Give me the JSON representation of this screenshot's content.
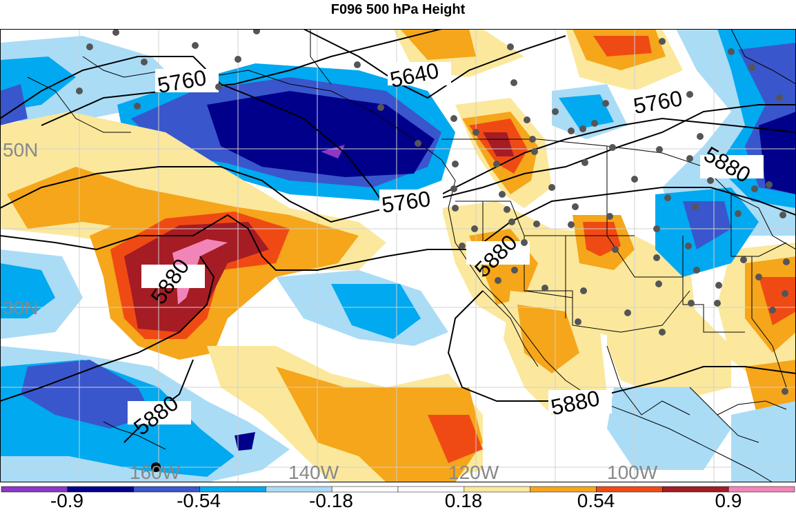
{
  "title": "F096 500 hPa Height",
  "latitude_labels": [
    "50N",
    "30N"
  ],
  "longitude_labels": [
    "160W",
    "140W",
    "120W",
    "100W"
  ],
  "contour_labels": [
    "5760",
    "5640",
    "5760",
    "5880",
    "5760",
    "5880",
    "5880",
    "5880",
    "5880"
  ],
  "colorbar": {
    "colors": [
      "#8c37c6",
      "#00008b",
      "#3a56cc",
      "#00a9f0",
      "#aadcf6",
      "#ffffff",
      "#ffffff",
      "#fbe89c",
      "#f5a61a",
      "#f04a14",
      "#a51c24",
      "#f285b8"
    ],
    "tick_labels": [
      "-0.9",
      "-0.54",
      "-0.18",
      "0.18",
      "0.54",
      "0.9"
    ]
  },
  "colors": {
    "deep_blue": "#00008b",
    "mid_blue": "#3a56cc",
    "light_blue": "#00a9f0",
    "pale_blue": "#aadcf6",
    "pale_yellow": "#fbe89c",
    "orange": "#f5a61a",
    "red_orange": "#f04a14",
    "dark_red": "#a51c24",
    "pink": "#f285b8",
    "purple": "#8c37c6",
    "station_dot": "#555555"
  }
}
